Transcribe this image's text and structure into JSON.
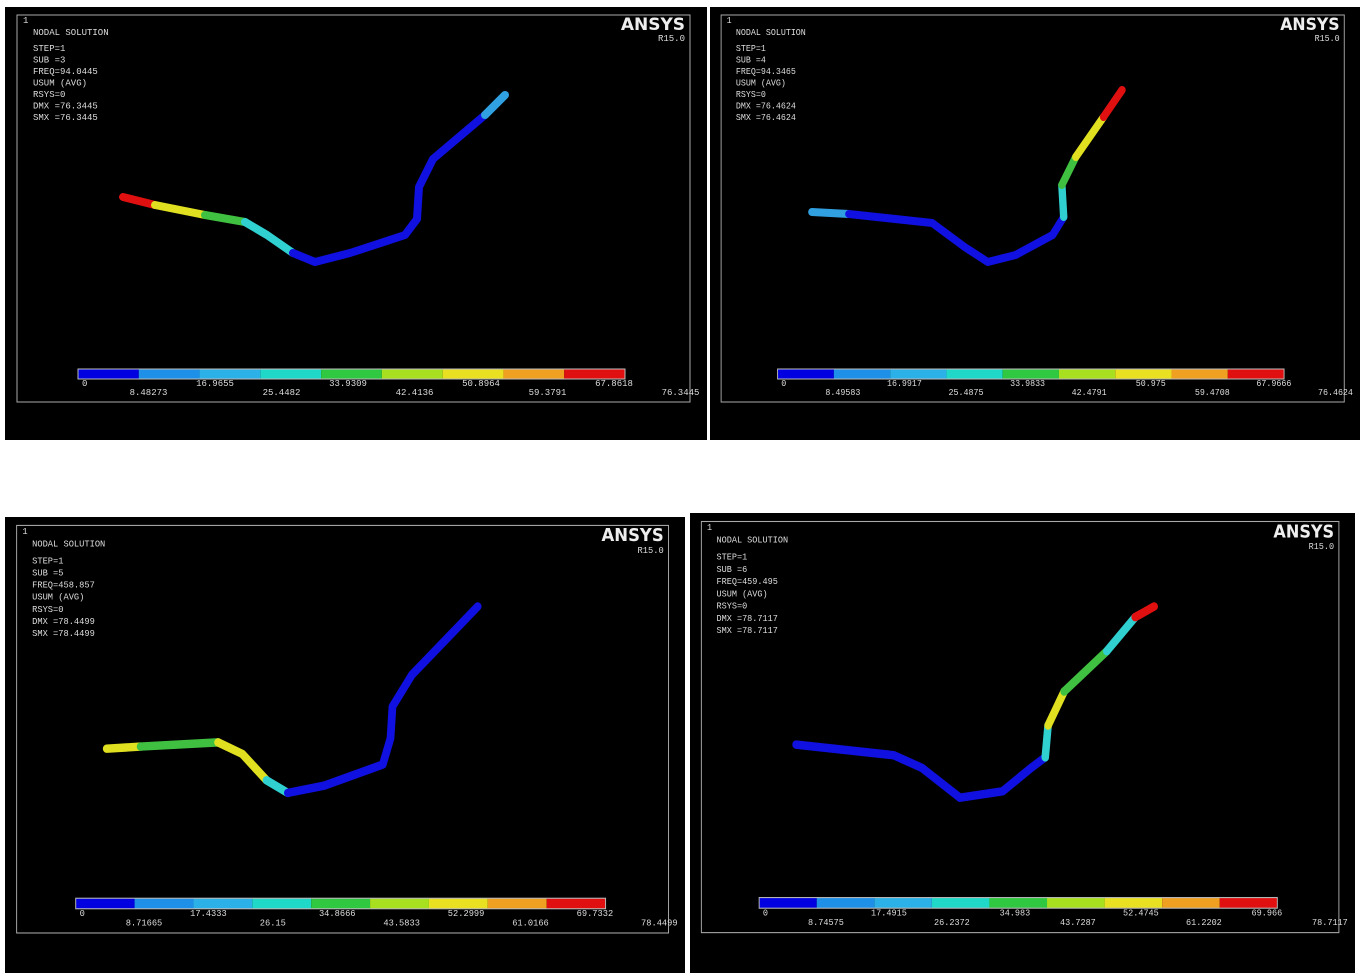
{
  "panels": [
    {
      "index": "1",
      "title": "NODAL SOLUTION",
      "info": [
        "STEP=1",
        "SUB =3",
        "FREQ=94.0445",
        "USUM      (AVG)",
        "RSYS=0",
        "DMX =76.3445",
        "SMX =76.3445"
      ],
      "brand": "ANSYS",
      "version": "R15.0",
      "legend": [
        0,
        8.48273,
        16.9655,
        25.4482,
        33.9309,
        42.4136,
        50.8964,
        59.3791,
        67.8618,
        76.3445
      ]
    },
    {
      "index": "1",
      "title": "NODAL SOLUTION",
      "info": [
        "STEP=1",
        "SUB =4",
        "FREQ=94.3465",
        "USUM      (AVG)",
        "RSYS=0",
        "DMX =76.4624",
        "SMX =76.4624"
      ],
      "brand": "ANSYS",
      "version": "R15.0",
      "legend": [
        0,
        8.49583,
        16.9917,
        25.4875,
        33.9833,
        42.4791,
        50.975,
        59.4708,
        67.9666,
        76.4624
      ]
    },
    {
      "index": "1",
      "title": "NODAL SOLUTION",
      "info": [
        "STEP=1",
        "SUB =5",
        "FREQ=458.857",
        "USUM      (AVG)",
        "RSYS=0",
        "DMX =78.4499",
        "SMX =78.4499"
      ],
      "brand": "ANSYS",
      "version": "R15.0",
      "legend": [
        0,
        8.71665,
        17.4333,
        26.15,
        34.8666,
        43.5833,
        52.2999,
        61.0166,
        69.7332,
        78.4499
      ]
    },
    {
      "index": "1",
      "title": "NODAL SOLUTION",
      "info": [
        "STEP=1",
        "SUB =6",
        "FREQ=459.495",
        "USUM      (AVG)",
        "RSYS=0",
        "DMX =78.7117",
        "SMX =78.7117"
      ],
      "brand": "ANSYS",
      "version": "R15.0",
      "legend": [
        0,
        8.74575,
        17.4915,
        26.2372,
        34.983,
        43.7287,
        52.4745,
        61.2202,
        69.966,
        78.7117
      ]
    }
  ]
}
